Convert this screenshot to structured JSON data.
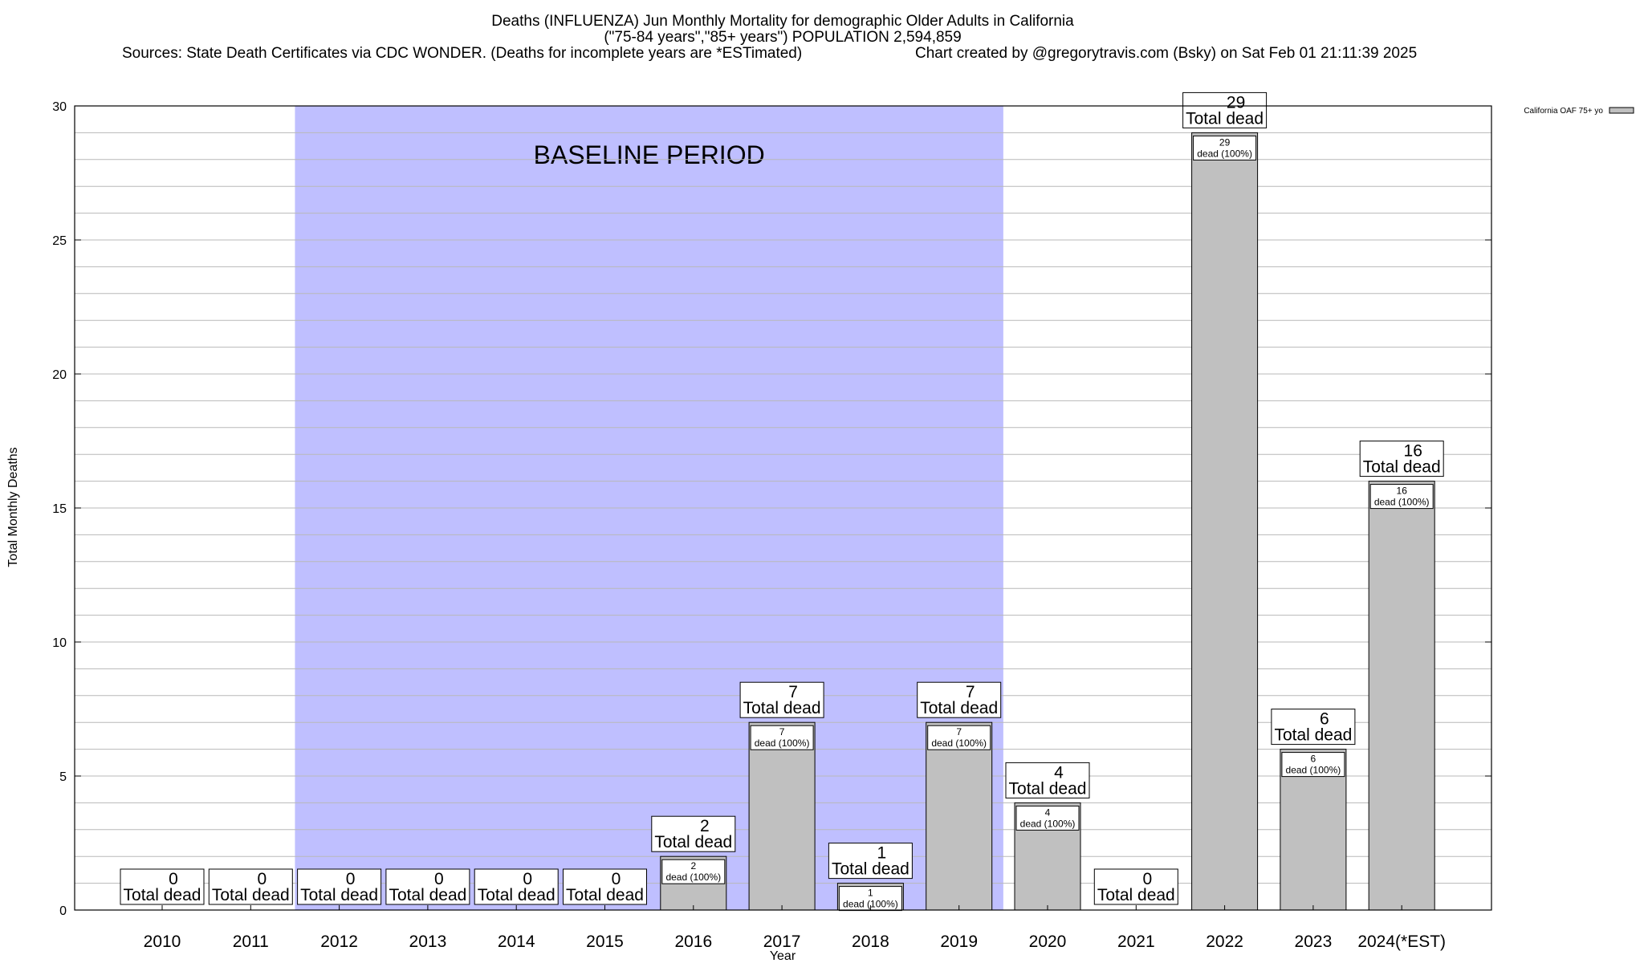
{
  "chart_data": {
    "type": "bar",
    "title_lines": [
      "Deaths (INFLUENZA) Jun Monthly Mortality for demographic Older Adults in California",
      "(\"75-84 years\",\"85+ years\") POPULATION 2,594,859"
    ],
    "sources": "Sources: State Death Certificates via CDC WONDER. (Deaths for incomplete years are *ESTimated)",
    "credit": "Chart created by @gregorytravis.com (Bsky) on Sat Feb 01 21:11:39 2025",
    "xlabel": "Year",
    "ylabel": "Total Monthly Deaths",
    "ylim": [
      0,
      30
    ],
    "yticks": [
      0,
      5,
      10,
      15,
      20,
      25,
      30
    ],
    "grid": true,
    "categories": [
      "2010",
      "2011",
      "2012",
      "2013",
      "2014",
      "2015",
      "2016",
      "2017",
      "2018",
      "2019",
      "2020",
      "2021",
      "2022",
      "2023",
      "2024(*EST)"
    ],
    "series": [
      {
        "name": "California OAF 75+ yo",
        "color": "#c0c0c0",
        "values": [
          0,
          0,
          0,
          0,
          0,
          0,
          2,
          7,
          1,
          7,
          4,
          0,
          29,
          6,
          16
        ]
      }
    ],
    "total_label": "Total dead",
    "inner_label": "dead (100%)",
    "baseline": {
      "label": "BASELINE PERIOD",
      "from": "2012",
      "to": "2019",
      "color": "#bfbfff"
    },
    "legend": {
      "position": "top-right",
      "label": "California OAF 75+ yo"
    }
  }
}
